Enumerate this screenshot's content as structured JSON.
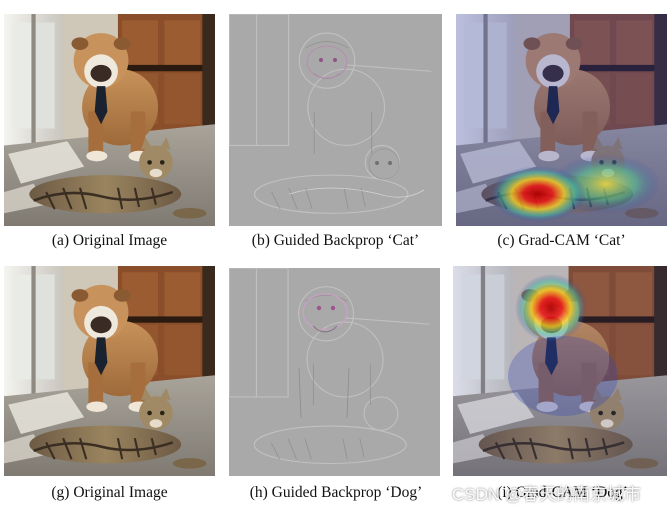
{
  "figure": {
    "captions": {
      "a": "(a) Original Image",
      "b": "(b) Guided Backprop ‘Cat’",
      "c": "(c) Grad-CAM ‘Cat’",
      "g": "(g) Original Image",
      "h": "(h) Guided Backprop ‘Dog’",
      "i": "(i) Grad-CAM ‘Dog’"
    },
    "watermark": "CSDN @春天的南京城市"
  },
  "colors": {
    "gradient_gray": "#a8a8a8",
    "photo_wall": "#d8d2c8",
    "heat_hot": "#d01010",
    "heat_cool": "#2233aa"
  }
}
